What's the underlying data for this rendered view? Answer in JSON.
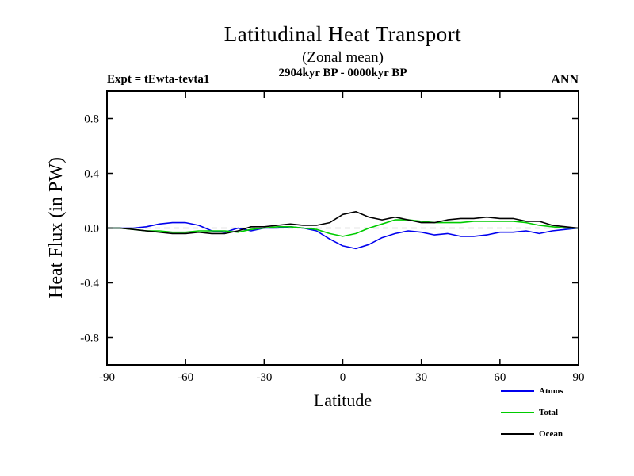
{
  "header": {
    "expt": "Expt = tEwta-tevta1",
    "season": "ANN"
  },
  "chart_data": {
    "type": "line",
    "title": "Latitudinal Heat Transport",
    "subtitle": "(Zonal mean)",
    "period": "2904kyr BP - 0000kyr BP",
    "xlabel": "Latitude",
    "ylabel": "Heat Flux (in PW)",
    "xlim": [
      -90,
      90
    ],
    "ylim": [
      -1.0,
      1.0
    ],
    "xticks": [
      -90,
      -60,
      -30,
      0,
      30,
      60,
      90
    ],
    "yticks": [
      -0.8,
      -0.4,
      0.0,
      0.4,
      0.8
    ],
    "grid": false,
    "zero_line": {
      "show": true,
      "color": "#999999",
      "style": "dashed"
    },
    "legend_position": "bottom-right",
    "axis_color": "#000000",
    "x": [
      -90,
      -85,
      -80,
      -75,
      -70,
      -65,
      -60,
      -55,
      -50,
      -45,
      -40,
      -35,
      -30,
      -25,
      -20,
      -15,
      -10,
      -5,
      0,
      5,
      10,
      15,
      20,
      25,
      30,
      35,
      40,
      45,
      50,
      55,
      60,
      65,
      70,
      75,
      80,
      85,
      90
    ],
    "series": [
      {
        "name": "Atmos",
        "color": "#0000ee",
        "values": [
          0.0,
          0.0,
          0.0,
          0.01,
          0.03,
          0.04,
          0.04,
          0.02,
          -0.02,
          -0.03,
          0.0,
          -0.02,
          0.0,
          0.0,
          0.01,
          0.0,
          -0.02,
          -0.08,
          -0.13,
          -0.15,
          -0.12,
          -0.07,
          -0.04,
          -0.02,
          -0.03,
          -0.05,
          -0.04,
          -0.06,
          -0.06,
          -0.05,
          -0.03,
          -0.03,
          -0.02,
          -0.04,
          -0.02,
          -0.01,
          0.0
        ]
      },
      {
        "name": "Total",
        "color": "#00cc00",
        "values": [
          0.0,
          0.0,
          -0.01,
          -0.02,
          -0.02,
          -0.03,
          -0.03,
          -0.02,
          -0.02,
          -0.02,
          -0.03,
          -0.01,
          0.0,
          0.01,
          0.01,
          0.0,
          -0.01,
          -0.04,
          -0.06,
          -0.04,
          0.0,
          0.03,
          0.06,
          0.06,
          0.05,
          0.04,
          0.04,
          0.04,
          0.05,
          0.05,
          0.05,
          0.05,
          0.04,
          0.02,
          0.01,
          0.0,
          0.0
        ]
      },
      {
        "name": "Ocean",
        "color": "#000000",
        "values": [
          0.0,
          0.0,
          -0.01,
          -0.02,
          -0.03,
          -0.04,
          -0.04,
          -0.03,
          -0.04,
          -0.04,
          -0.02,
          0.01,
          0.01,
          0.02,
          0.03,
          0.02,
          0.02,
          0.04,
          0.1,
          0.12,
          0.08,
          0.06,
          0.08,
          0.06,
          0.04,
          0.04,
          0.06,
          0.07,
          0.07,
          0.08,
          0.07,
          0.07,
          0.05,
          0.05,
          0.02,
          0.01,
          0.0
        ]
      }
    ]
  }
}
